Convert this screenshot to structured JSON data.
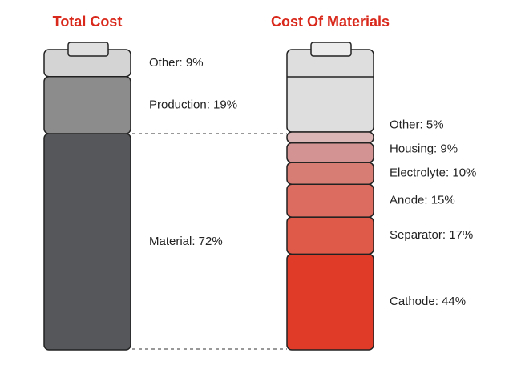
{
  "chart_data": [
    {
      "type": "battery-stack",
      "title": "Total Cost",
      "values": [
        72,
        19,
        9
      ],
      "value_labels": [
        "Material: 72%",
        "Production: 19%",
        "Other: 9%"
      ],
      "colors": [
        "#55575a",
        "#8c8c8c",
        "#d4d4d4"
      ]
    },
    {
      "type": "battery-stack",
      "title": "Cost Of Materials",
      "values": [
        44,
        17,
        15,
        10,
        9,
        5
      ],
      "value_labels": [
        "Cathode: 44%",
        "Separator: 17%",
        "Anode: 15%",
        "Electrolyte: 10%",
        "Housing: 9%",
        "Other: 5%"
      ],
      "colors": [
        "#e03a29",
        "#df5a48",
        "#dc6c5f",
        "#d87d73",
        "#d39393",
        "#dab6b6"
      ]
    }
  ]
}
